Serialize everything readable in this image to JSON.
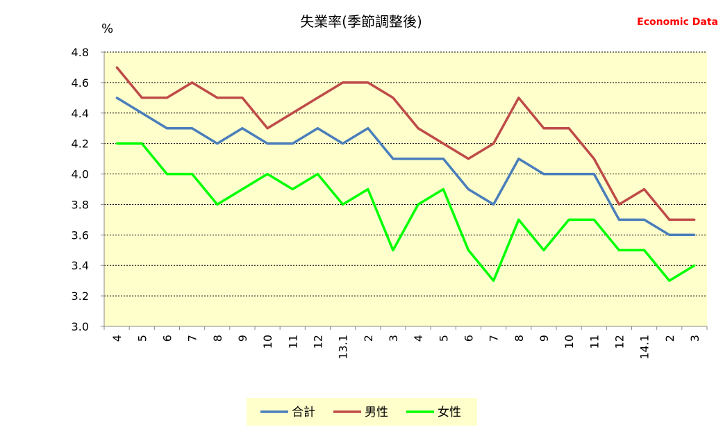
{
  "chart_data": {
    "type": "line",
    "title": "失業率(季節調整後)",
    "unit_label": "%",
    "source_label": "Economic Data",
    "categories": [
      "4",
      "5",
      "6",
      "7",
      "8",
      "9",
      "10",
      "11",
      "12",
      "13.1",
      "2",
      "3",
      "4",
      "5",
      "6",
      "7",
      "8",
      "9",
      "10",
      "11",
      "12",
      "14.1",
      "2",
      "3"
    ],
    "ylim": [
      3.0,
      4.8
    ],
    "yticks": [
      "3.0",
      "3.2",
      "3.4",
      "3.6",
      "3.8",
      "4.0",
      "4.2",
      "4.4",
      "4.6",
      "4.8"
    ],
    "grid": true,
    "legend_position": "bottom",
    "series": [
      {
        "name": "合計",
        "color": "#4a7ebb",
        "values": [
          4.5,
          4.4,
          4.3,
          4.3,
          4.2,
          4.3,
          4.2,
          4.2,
          4.3,
          4.2,
          4.3,
          4.1,
          4.1,
          4.1,
          3.9,
          3.8,
          4.1,
          4.0,
          4.0,
          4.0,
          3.7,
          3.7,
          3.6,
          3.6
        ]
      },
      {
        "name": "男性",
        "color": "#be4b48",
        "values": [
          4.7,
          4.5,
          4.5,
          4.6,
          4.5,
          4.5,
          4.3,
          4.4,
          4.5,
          4.6,
          4.6,
          4.5,
          4.3,
          4.2,
          4.1,
          4.2,
          4.5,
          4.3,
          4.3,
          4.1,
          3.8,
          3.9,
          3.7,
          3.7
        ]
      },
      {
        "name": "女性",
        "color": "#00ff00",
        "values": [
          4.2,
          4.2,
          4.0,
          4.0,
          3.8,
          3.9,
          4.0,
          3.9,
          4.0,
          3.8,
          3.9,
          3.5,
          3.8,
          3.9,
          3.5,
          3.3,
          3.7,
          3.5,
          3.7,
          3.7,
          3.5,
          3.5,
          3.3,
          3.4
        ]
      }
    ],
    "colors": {
      "plot_bg": "#ffffcc",
      "legend_bg": "#ffffcc",
      "source": "#ff0000"
    }
  }
}
